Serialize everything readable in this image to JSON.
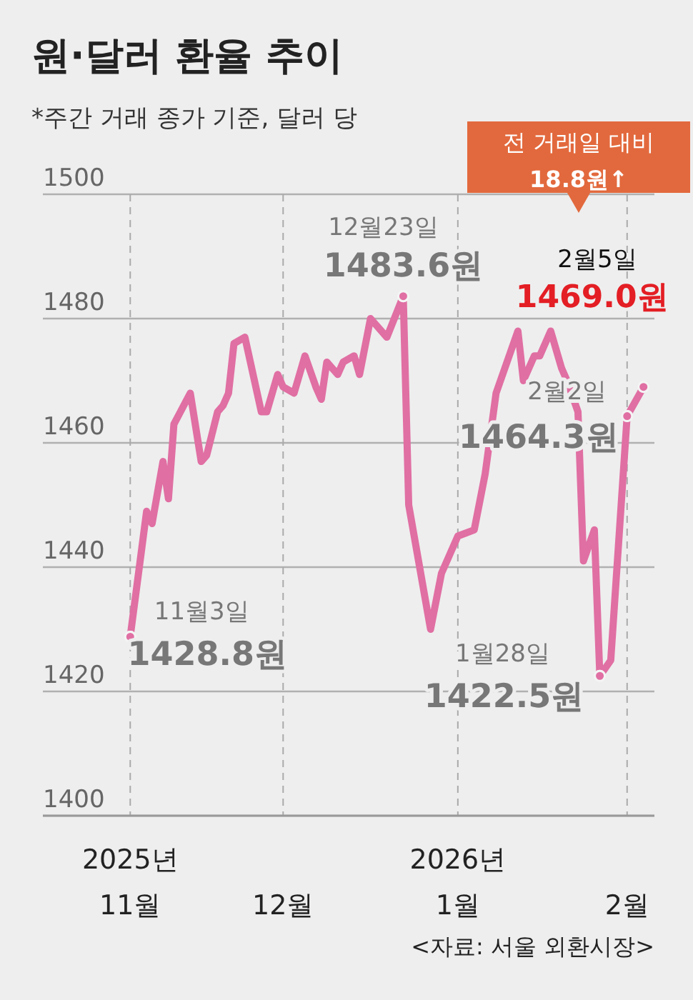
{
  "chart_data": {
    "type": "line",
    "title": "원·달러 환율 추이",
    "subtitle": "*주간 거래 종가 기준, 달러 당",
    "x": [
      "2025-11-03",
      "2025-11-06",
      "2025-11-07",
      "2025-11-09",
      "2025-11-10",
      "2025-11-11",
      "2025-11-14",
      "2025-11-16",
      "2025-11-17",
      "2025-11-19",
      "2025-11-20",
      "2025-11-21",
      "2025-11-22",
      "2025-11-24",
      "2025-11-27",
      "2025-11-28",
      "2025-11-30",
      "2025-12-01",
      "2025-12-03",
      "2025-12-05",
      "2025-12-07",
      "2025-12-08",
      "2025-12-09",
      "2025-12-11",
      "2025-12-12",
      "2025-12-14",
      "2025-12-15",
      "2025-12-17",
      "2025-12-20",
      "2025-12-23",
      "2025-12-24",
      "2025-12-28",
      "2025-12-30",
      "2026-01-02",
      "2026-01-05",
      "2026-01-07",
      "2026-01-09",
      "2026-01-13",
      "2026-01-14",
      "2026-01-16",
      "2026-01-17",
      "2026-01-19",
      "2026-01-21",
      "2026-01-22",
      "2026-01-24",
      "2026-01-25",
      "2026-01-27",
      "2026-01-28",
      "2026-01-30",
      "2026-02-02",
      "2026-02-05"
    ],
    "series": [
      {
        "color": "#e06fa3",
        "values": [
          1428.8,
          1449,
          1447,
          1457,
          1451,
          1463,
          1468,
          1457,
          1458,
          1465,
          1466,
          1468,
          1476,
          1477,
          1465,
          1465,
          1471,
          1469,
          1468,
          1474,
          1469,
          1467,
          1473,
          1471,
          1473,
          1474,
          1471,
          1480,
          1477,
          1483.6,
          1450,
          1430,
          1439,
          1445,
          1446,
          1455,
          1468,
          1478,
          1470,
          1474,
          1474,
          1478,
          1472,
          1470,
          1465,
          1441,
          1446,
          1422.5,
          1425,
          1464.3,
          1469.0
        ]
      }
    ],
    "xlim": [
      "2025-10-18",
      "2026-02-07"
    ],
    "ylim": [
      1400,
      1500
    ],
    "xticks": [
      {
        "value": "2025-11-03",
        "label": "2025년\n11월"
      },
      {
        "value": "2025-12-01",
        "label": "12월"
      },
      {
        "value": "2026-01-02",
        "label": "2026년\n1월"
      },
      {
        "value": "2026-02-02",
        "label": "2월"
      }
    ],
    "yticks": [
      1400,
      1420,
      1440,
      1460,
      1480,
      1500
    ],
    "grid": true,
    "marker": "none",
    "line_style": "solid",
    "annotations": [
      {
        "text": "11월3일",
        "x": "2025-11-03",
        "y": 1428.8
      },
      {
        "text": "1428.8원",
        "x": "2025-11-03",
        "y": 1428.8
      },
      {
        "text": "12월23일",
        "x": "2025-12-23",
        "y": 1483.6
      },
      {
        "text": "1483.6원",
        "x": "2025-12-23",
        "y": 1483.6
      },
      {
        "text": "1월28일",
        "x": "2026-01-28",
        "y": 1422.5
      },
      {
        "text": "1422.5원",
        "x": "2026-01-28",
        "y": 1422.5
      },
      {
        "text": "2월2일",
        "x": "2026-02-02",
        "y": 1464.3
      },
      {
        "text": "1464.3원",
        "x": "2026-02-02",
        "y": 1464.3
      },
      "2월5일",
      {
        "text": "1469.0원",
        "x": "2026-02-05",
        "y": 1469.0
      },
      "전 거래일 대비\n18.8원↑",
      "<자료: 서울 외환시장>"
    ]
  }
}
